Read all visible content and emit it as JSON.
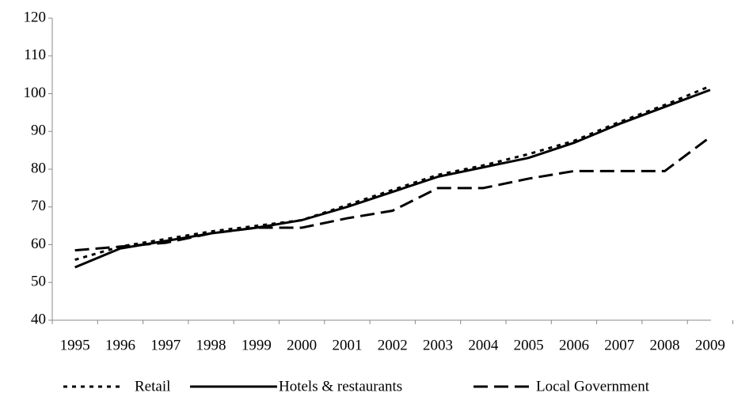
{
  "chart_data": {
    "type": "line",
    "categories": [
      "1995",
      "1996",
      "1997",
      "1998",
      "1999",
      "2000",
      "2001",
      "2002",
      "2003",
      "2004",
      "2005",
      "2006",
      "2007",
      "2008",
      "2009"
    ],
    "series": [
      {
        "name": "Retail",
        "color": "#000000",
        "values": [
          56,
          59.5,
          61.5,
          63.5,
          65,
          66.5,
          70.5,
          74.5,
          78.5,
          81,
          84,
          87.5,
          92.5,
          97,
          102
        ]
      },
      {
        "name": "Hotels & restaurants",
        "color": "#000000",
        "values": [
          54,
          59,
          61,
          63,
          64.5,
          66.5,
          70,
          74,
          78,
          80.5,
          83,
          87,
          92,
          96.5,
          101
        ]
      },
      {
        "name": "Local Government",
        "color": "#000000",
        "values": [
          58.5,
          59.5,
          60.5,
          63,
          64.5,
          64.5,
          67,
          69,
          75,
          75,
          77.5,
          79.5,
          79.5,
          79.5,
          88.5
        ]
      }
    ],
    "ylim": [
      40,
      120
    ],
    "yticks": [
      40,
      50,
      60,
      70,
      80,
      90,
      100,
      110,
      120
    ],
    "grid": false
  }
}
